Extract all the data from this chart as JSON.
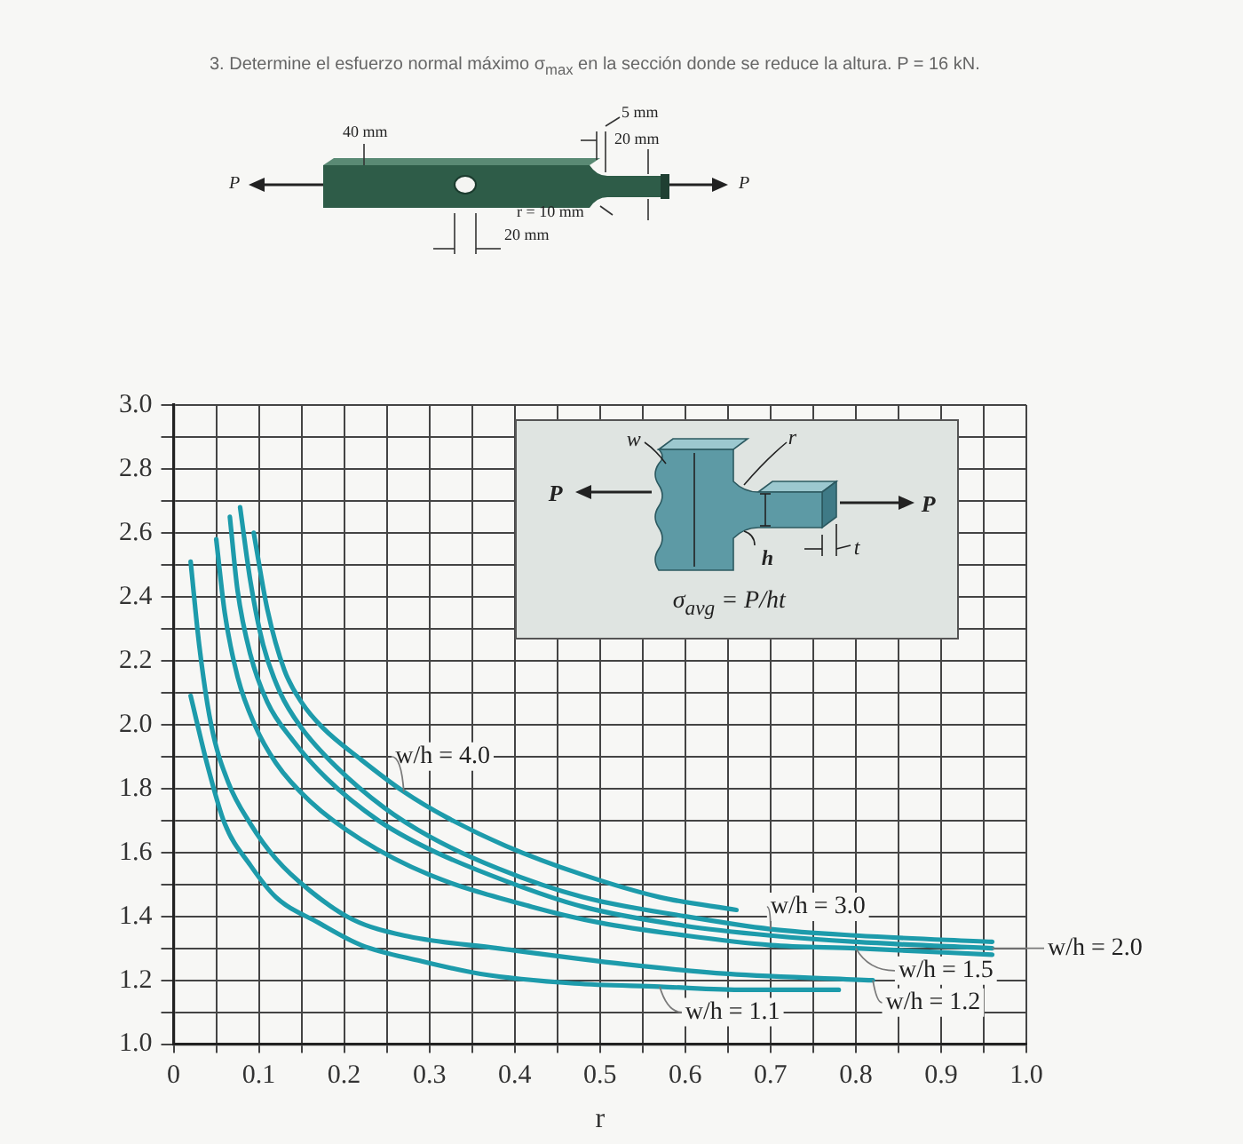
{
  "chart_data": {
    "type": "line",
    "title": "3. Determine el esfuerzo normal máximo σ$_{max}$ en la sección donde se reduce la altura. P = 16 kN.",
    "xlabel": "r",
    "annotations": [
      "40 mm",
      "5 mm",
      "20 mm",
      "r = 10 mm",
      "20 mm",
      "P",
      "P",
      "w",
      "r",
      "P",
      "P",
      "h",
      "t",
      "σ$_{avg}$ = P/ht"
    ],
    "xlim": [
      0,
      1
    ],
    "xticks": [
      0,
      {
        "value": 0.05,
        "label": null
      },
      0.1,
      {
        "value": 0.15,
        "label": null
      },
      0.2,
      {
        "value": 0.25,
        "label": null
      },
      0.3,
      {
        "value": 0.35,
        "label": null
      },
      0.4,
      {
        "value": 0.45,
        "label": null
      },
      0.5,
      {
        "value": 0.55,
        "label": null
      },
      0.6,
      {
        "value": 0.65,
        "label": null
      },
      0.7,
      {
        "value": 0.75,
        "label": null
      },
      0.8,
      {
        "value": 0.85,
        "label": null
      },
      0.9,
      {
        "value": 0.95,
        "label": null
      },
      {
        "value": 1,
        "label": "1.0"
      }
    ],
    "ylim": [
      1,
      3
    ],
    "yticks": [
      {
        "value": 1,
        "label": "1.0"
      },
      {
        "value": 1.1,
        "label": null
      },
      1.2,
      {
        "value": 1.3,
        "label": null
      },
      1.4,
      {
        "value": 1.5,
        "label": null
      },
      1.6,
      {
        "value": 1.7,
        "label": null
      },
      1.8,
      {
        "value": 1.9,
        "label": null
      },
      {
        "value": 2,
        "label": "2.0"
      },
      {
        "value": 2.1,
        "label": null
      },
      2.2,
      {
        "value": 2.3,
        "label": null
      },
      2.4,
      {
        "value": 2.5,
        "label": null
      },
      2.6,
      {
        "value": 2.7,
        "label": null
      },
      2.8,
      {
        "value": 2.9,
        "label": null
      },
      {
        "value": 3,
        "label": "3.0"
      }
    ],
    "grid": true,
    "marker": "none",
    "line_style": "solid",
    "series": [
      {
        "name": "w/h = 4.0",
        "color": "#1d9bab",
        "x": [
          0.094,
          0.11,
          0.13,
          0.15,
          0.175,
          0.22,
          0.27,
          0.32,
          0.39,
          0.48,
          0.57,
          0.66
        ],
        "values": [
          2.6,
          2.36,
          2.17,
          2.07,
          1.99,
          1.89,
          1.79,
          1.71,
          1.62,
          1.53,
          1.46,
          1.42
        ]
      },
      {
        "name": "w/h = 3.0",
        "color": "#1d9bab",
        "x": [
          0.078,
          0.09,
          0.105,
          0.125,
          0.15,
          0.19,
          0.247,
          0.3,
          0.38,
          0.48,
          0.6,
          0.7,
          0.8,
          0.96
        ],
        "values": [
          2.68,
          2.45,
          2.25,
          2.1,
          1.99,
          1.87,
          1.74,
          1.65,
          1.55,
          1.46,
          1.4,
          1.36,
          1.34,
          1.32
        ]
      },
      {
        "name": "w/h = 2.0",
        "color": "#1d9bab",
        "x": [
          0.066,
          0.075,
          0.09,
          0.11,
          0.14,
          0.18,
          0.24,
          0.3,
          0.39,
          0.48,
          0.6,
          0.7,
          0.8,
          0.96
        ],
        "values": [
          2.65,
          2.42,
          2.22,
          2.07,
          1.95,
          1.83,
          1.7,
          1.61,
          1.51,
          1.43,
          1.37,
          1.34,
          1.32,
          1.3
        ]
      },
      {
        "name": "w/h = 1.5",
        "color": "#1d9bab",
        "x": [
          0.05,
          0.06,
          0.075,
          0.095,
          0.12,
          0.16,
          0.22,
          0.3,
          0.42,
          0.5,
          0.6,
          0.7,
          0.8,
          0.96
        ],
        "values": [
          2.58,
          2.35,
          2.15,
          2.0,
          1.88,
          1.76,
          1.64,
          1.53,
          1.43,
          1.38,
          1.34,
          1.31,
          1.3,
          1.28
        ]
      },
      {
        "name": "w/h = 1.2",
        "color": "#1d9bab",
        "x": [
          0.02,
          0.03,
          0.044,
          0.064,
          0.09,
          0.12,
          0.16,
          0.21,
          0.27,
          0.38,
          0.53,
          0.65,
          0.82
        ],
        "values": [
          2.51,
          2.25,
          2.0,
          1.82,
          1.69,
          1.58,
          1.48,
          1.39,
          1.34,
          1.3,
          1.25,
          1.22,
          1.2
        ]
      },
      {
        "name": "w/h = 1.1",
        "color": "#1d9bab",
        "x": [
          0.02,
          0.04,
          0.06,
          0.09,
          0.12,
          0.17,
          0.22,
          0.29,
          0.36,
          0.47,
          0.57,
          0.67,
          0.78
        ],
        "values": [
          2.09,
          1.87,
          1.69,
          1.56,
          1.46,
          1.38,
          1.31,
          1.26,
          1.22,
          1.19,
          1.18,
          1.17,
          1.17
        ]
      }
    ]
  }
}
